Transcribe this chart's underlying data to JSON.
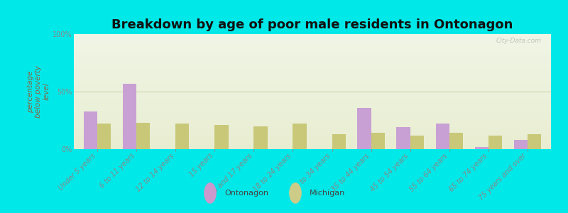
{
  "title": "Breakdown by age of poor male residents in Ontonagon",
  "ylabel": "percentage\nbelow poverty\nlevel",
  "categories": [
    "Under 5 years",
    "6 to 11 years",
    "12 to 14 years",
    "15 years",
    "16 and 17 years",
    "18 to 24 years",
    "25 to 34 years",
    "35 to 44 years",
    "45 to 54 years",
    "55 to 64 years",
    "65 to 74 years",
    "75 years and over"
  ],
  "ontonagon_values": [
    33,
    57,
    0,
    0,
    0,
    0,
    0,
    36,
    19,
    22,
    2,
    8
  ],
  "michigan_values": [
    22,
    23,
    22,
    21,
    20,
    22,
    13,
    14,
    12,
    14,
    12,
    13
  ],
  "ontonagon_color": "#c8a0d4",
  "michigan_color": "#c8c878",
  "background_color": "#00e8e8",
  "ylim": [
    0,
    100
  ],
  "yticks": [
    0,
    50,
    100
  ],
  "ytick_labels": [
    "0%",
    "50%",
    "100%"
  ],
  "bar_width": 0.35,
  "title_fontsize": 13,
  "axis_label_fontsize": 7.5,
  "tick_label_fontsize": 7,
  "legend_labels": [
    "Ontonagon",
    "Michigan"
  ],
  "watermark": "City-Data.com",
  "legend_marker_ontonagon": "#cc99cc",
  "legend_marker_michigan": "#cccc88"
}
